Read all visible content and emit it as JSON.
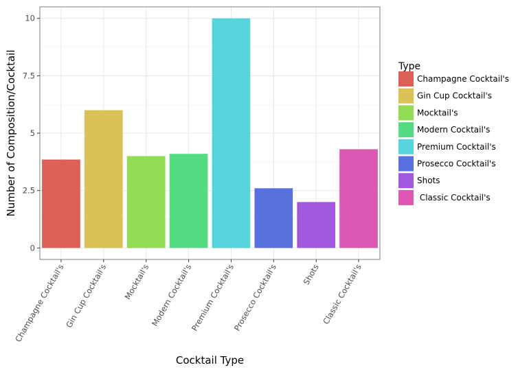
{
  "chart_data": {
    "type": "bar",
    "title": "",
    "xlabel": "Cocktail Type",
    "ylabel": "Number of Composition/Cocktail",
    "categories": [
      "Champagne Cocktail's",
      "Gin Cup Cocktail's",
      "Mocktail's",
      "Modern Cocktail's",
      "Premium Cocktail's",
      "Prosecco Cocktail's",
      "Shots",
      "Classic Cocktail's"
    ],
    "values": [
      3.85,
      6.0,
      4.0,
      4.1,
      10.0,
      2.6,
      2.0,
      4.3
    ],
    "colors": [
      "#dd5f56",
      "#dbc257",
      "#92dc55",
      "#55db81",
      "#57d4dc",
      "#5871df",
      "#a258de",
      "#dc58b3"
    ],
    "ylim": [
      -0.5,
      10.5
    ],
    "yticks": [
      0,
      2.5,
      5,
      7.5,
      10
    ],
    "ytick_labels": [
      "0",
      "2.5",
      "5",
      "7.5",
      "10"
    ],
    "grid": true,
    "legend": {
      "title": "Type",
      "placement": "right",
      "labels": [
        "Champagne Cocktail's",
        "Gin Cup Cocktail's",
        "Mocktail's",
        "Modern Cocktail's",
        "Premium Cocktail's",
        "Prosecco Cocktail's",
        "Shots",
        " Classic Cocktail's"
      ]
    }
  }
}
